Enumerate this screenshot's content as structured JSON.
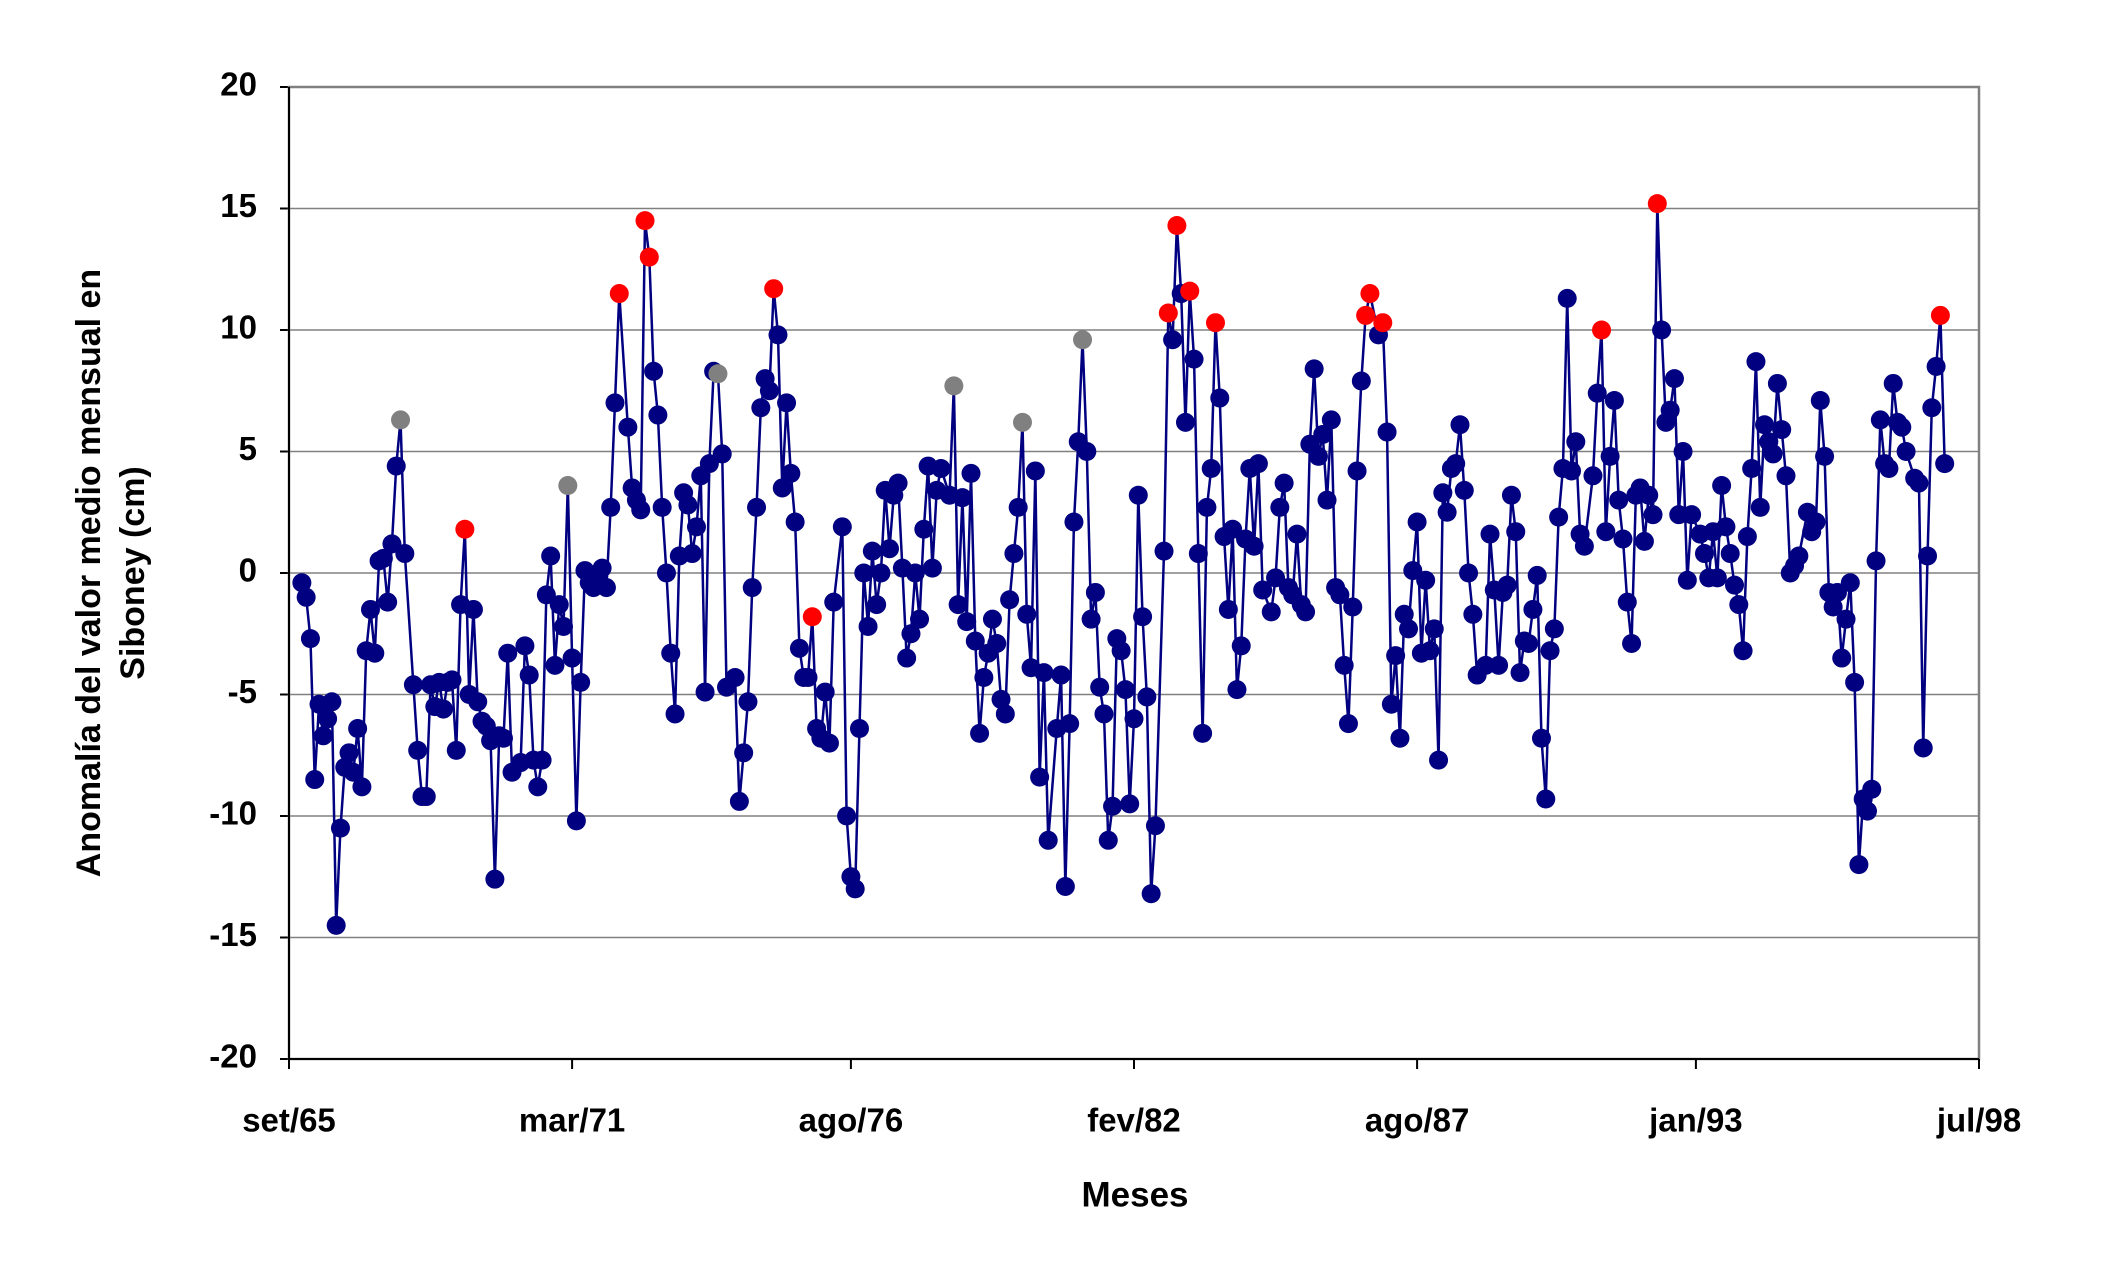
{
  "chart_data": {
    "type": "line",
    "ylabel_lines": [
      "Anomalía del valor medio mensual en",
      "Siboney  (cm)"
    ],
    "xlabel": "Meses",
    "xlim": [
      0,
      394
    ],
    "xticks": [
      {
        "value": 0,
        "label": "set/65"
      },
      {
        "value": 66,
        "label": "mar/71"
      },
      {
        "value": 131,
        "label": "ago/76"
      },
      {
        "value": 197,
        "label": "fev/82"
      },
      {
        "value": 263,
        "label": "ago/87"
      },
      {
        "value": 328,
        "label": "jan/93"
      },
      {
        "value": 394,
        "label": "jul/98"
      }
    ],
    "ylim": [
      -20,
      20
    ],
    "yticks": [
      -20,
      -15,
      -10,
      -5,
      0,
      5,
      10,
      15,
      20
    ],
    "grid": true,
    "color": "#000080",
    "highlights": [
      {
        "color": "#ff0000",
        "points": [
          37,
          72,
          77,
          78,
          106,
          115,
          194,
          196,
          199,
          205,
          239,
          240,
          242,
          291,
          304,
          367
        ]
      },
      {
        "color": "#808080",
        "points": [
          23,
          60,
          94,
          146,
          162,
          175
        ]
      }
    ],
    "x": [
      3,
      4,
      5,
      6,
      7,
      8,
      9,
      10,
      11,
      12,
      13,
      14,
      15,
      16,
      17,
      18,
      19,
      20,
      21,
      22,
      23,
      24,
      25,
      26,
      27,
      29,
      30,
      31,
      32,
      33,
      34,
      35,
      36,
      37,
      38,
      39,
      40,
      41,
      42,
      43,
      44,
      45,
      46,
      47,
      48,
      49,
      50,
      51,
      52,
      54,
      55,
      56,
      57,
      58,
      59,
      60,
      61,
      62,
      63,
      64,
      65,
      66,
      67,
      68,
      69,
      70,
      71,
      72,
      73,
      74,
      75,
      76,
      77,
      79,
      80,
      81,
      82,
      83,
      84,
      85,
      86,
      87,
      88,
      89,
      90,
      91,
      92,
      93,
      94,
      95,
      96,
      97,
      98,
      99,
      100,
      101,
      102,
      104,
      105,
      106,
      107,
      108,
      109,
      110,
      111,
      112,
      113,
      114,
      115,
      116,
      117,
      118,
      119,
      120,
      121,
      122,
      123,
      124,
      125,
      126,
      127,
      129,
      130,
      131,
      132,
      133,
      134,
      135,
      136,
      137,
      138,
      139,
      140,
      141,
      142,
      143,
      144,
      145,
      146,
      147,
      148,
      149,
      150,
      151,
      152,
      154,
      155,
      156,
      157,
      158,
      159,
      160,
      161,
      162,
      163,
      164,
      165,
      166,
      167,
      168,
      169,
      170,
      171,
      172,
      173,
      174,
      175,
      176,
      177,
      179,
      180,
      181,
      182,
      183,
      184,
      185,
      186,
      187,
      188,
      189,
      190,
      191,
      192,
      193,
      194,
      195,
      196,
      197,
      198,
      199,
      200,
      201,
      202,
      204,
      205,
      206,
      207,
      208,
      209,
      210,
      211,
      212,
      213,
      214,
      215,
      216,
      217,
      218,
      219,
      220,
      221,
      222,
      223,
      224,
      225,
      226,
      227,
      229,
      230,
      231,
      232,
      233,
      234,
      235,
      236,
      237,
      238,
      239,
      240,
      241,
      242,
      243,
      244,
      245,
      246,
      247,
      248,
      249,
      250,
      251,
      252,
      254,
      255,
      256,
      257,
      258,
      259,
      260,
      261,
      262,
      263,
      264,
      265,
      266,
      267,
      268,
      269,
      270,
      271,
      272,
      273,
      274,
      275,
      276,
      277,
      279,
      280,
      281,
      282,
      283,
      284,
      285,
      286,
      287,
      288,
      289,
      290,
      291,
      292,
      293,
      294,
      295,
      296,
      297,
      298,
      299,
      300,
      301,
      302,
      304,
      305,
      306,
      307,
      308,
      309,
      310,
      311,
      312,
      313,
      314,
      315,
      316,
      317,
      318,
      319,
      320,
      321,
      322,
      323,
      324,
      325,
      326,
      327,
      329,
      330,
      331,
      332,
      333,
      334,
      335,
      336,
      337,
      338,
      339,
      340,
      341,
      342,
      343,
      344,
      345,
      346,
      347,
      348,
      349,
      350,
      351,
      352,
      354,
      355,
      356,
      357,
      358,
      359,
      360,
      361,
      362,
      363,
      364,
      365,
      366,
      367,
      368,
      369,
      370,
      371,
      372,
      373,
      374,
      375,
      376,
      377,
      379,
      380,
      381,
      382,
      383,
      384,
      385,
      386
    ],
    "values": [
      -0.4,
      -1,
      -2.7,
      -8.5,
      -5.4,
      -6.7,
      -6,
      -5.3,
      -14.5,
      -10.5,
      -8,
      -7.4,
      -8.2,
      -6.4,
      -8.8,
      -3.2,
      -1.5,
      -3.3,
      0.5,
      0.6,
      -1.2,
      1.2,
      4.4,
      6.3,
      0.8,
      -4.6,
      -7.3,
      -9.2,
      -9.2,
      -4.6,
      -5.5,
      -4.5,
      -5.6,
      -4.5,
      -4.4,
      -7.3,
      -1.3,
      1.8,
      -5,
      -1.5,
      -5.3,
      -6.1,
      -6.3,
      -6.9,
      -12.6,
      -6.7,
      -6.8,
      -3.3,
      -8.2,
      -7.8,
      -3,
      -4.2,
      -7.7,
      -8.8,
      -7.7,
      -0.9,
      0.7,
      -3.8,
      -1.3,
      -2.2,
      3.6,
      -3.5,
      -10.2,
      -4.5,
      0.1,
      -0.4,
      -0.6,
      -0.2,
      0.2,
      -0.6,
      2.7,
      7,
      11.5,
      6,
      3.5,
      3,
      2.6,
      14.5,
      13,
      8.3,
      6.5,
      2.7,
      0,
      -3.3,
      -5.8,
      0.7,
      3.3,
      2.8,
      0.8,
      1.9,
      4,
      -4.9,
      4.5,
      8.3,
      8.2,
      4.9,
      -4.7,
      -4.3,
      -9.4,
      -7.4,
      -5.3,
      -0.6,
      2.7,
      6.8,
      8,
      7.5,
      11.7,
      9.8,
      3.5,
      7,
      4.1,
      2.1,
      -3.1,
      -4.3,
      -4.3,
      -1.8,
      -6.4,
      -6.8,
      -4.9,
      -7,
      -1.2,
      1.9,
      -10,
      -12.5,
      -13,
      -6.4,
      0,
      -2.2,
      0.9,
      -1.3,
      0,
      3.4,
      1,
      3.2,
      3.7,
      0.2,
      -3.5,
      -2.5,
      0,
      -1.9,
      1.8,
      4.4,
      0.2,
      3.4,
      4.3,
      3.2,
      7.7,
      -1.3,
      3.1,
      -2,
      4.1,
      -2.8,
      -6.6,
      -4.3,
      -3.3,
      -1.9,
      -2.9,
      -5.2,
      -5.8,
      -1.1,
      0.8,
      2.7,
      6.2,
      -1.7,
      -3.9,
      4.2,
      -8.4,
      -4.1,
      -11,
      -6.4,
      -4.2,
      -12.9,
      -6.2,
      2.1,
      5.4,
      9.6,
      5,
      -1.9,
      -0.8,
      -4.7,
      -5.8,
      -11,
      -9.6,
      -2.7,
      -3.2,
      -4.8,
      -9.5,
      -6,
      3.2,
      -1.8,
      -5.1,
      -13.2,
      -10.4,
      0.9,
      10.7,
      9.6,
      14.3,
      11.5,
      6.2,
      11.6,
      8.8,
      0.8,
      -6.6,
      2.7,
      4.3,
      10.3,
      7.2,
      1.5,
      -1.5,
      1.8,
      -4.8,
      -3,
      1.4,
      4.3,
      1.1,
      4.5,
      -0.7,
      -1.6,
      -0.2,
      2.7,
      3.7,
      -0.6,
      -0.9,
      1.6,
      -1.3,
      -1.6,
      5.3,
      8.4,
      4.8,
      5.7,
      3,
      6.3,
      -0.6,
      -0.9,
      -3.8,
      -6.2,
      -1.4,
      4.2,
      7.9,
      10.6,
      11.5,
      9.8,
      10.3,
      5.8,
      -5.4,
      -3.4,
      -6.8,
      -1.7,
      -2.3,
      0.1,
      2.1,
      -3.3,
      -0.3,
      -3.2,
      -2.3,
      -7.7,
      3.3,
      2.5,
      4.3,
      4.5,
      6.1,
      3.4,
      0,
      -1.7,
      -4.2,
      -3.8,
      1.6,
      -0.7,
      -3.8,
      -0.8,
      -0.5,
      3.2,
      1.7,
      -4.1,
      -2.8,
      -2.9,
      -1.5,
      -0.1,
      -6.8,
      -9.3,
      -3.2,
      -2.3,
      2.3,
      4.3,
      11.3,
      4.2,
      5.4,
      1.6,
      1.1,
      4,
      7.4,
      10,
      1.7,
      4.8,
      7.1,
      3,
      1.4,
      -1.2,
      -2.9,
      3.2,
      3.5,
      1.3,
      3.2,
      2.4,
      15.2,
      10,
      6.2,
      6.7,
      8,
      2.4,
      5,
      -0.3,
      2.4,
      1.6,
      0.8,
      -0.2,
      1.7,
      -0.2,
      3.6,
      1.9,
      0.8,
      -0.5,
      -1.3,
      -3.2,
      1.5,
      4.3,
      8.7,
      2.7,
      6.1,
      5.4,
      4.9,
      7.8,
      5.9,
      4,
      0,
      0.3,
      0.7,
      2.5,
      1.7,
      2.1,
      7.1,
      4.8,
      -0.8,
      -1.4,
      -0.8,
      -3.5,
      -1.9,
      -0.4,
      -4.5,
      -12,
      -9.3,
      -9.8,
      -8.9,
      0.5,
      6.3,
      4.5,
      4.3,
      7.8,
      6.2,
      6,
      5,
      3.9,
      3.7,
      -7.2,
      0.7,
      6.8,
      8.5,
      10.6,
      4.5
    ]
  }
}
